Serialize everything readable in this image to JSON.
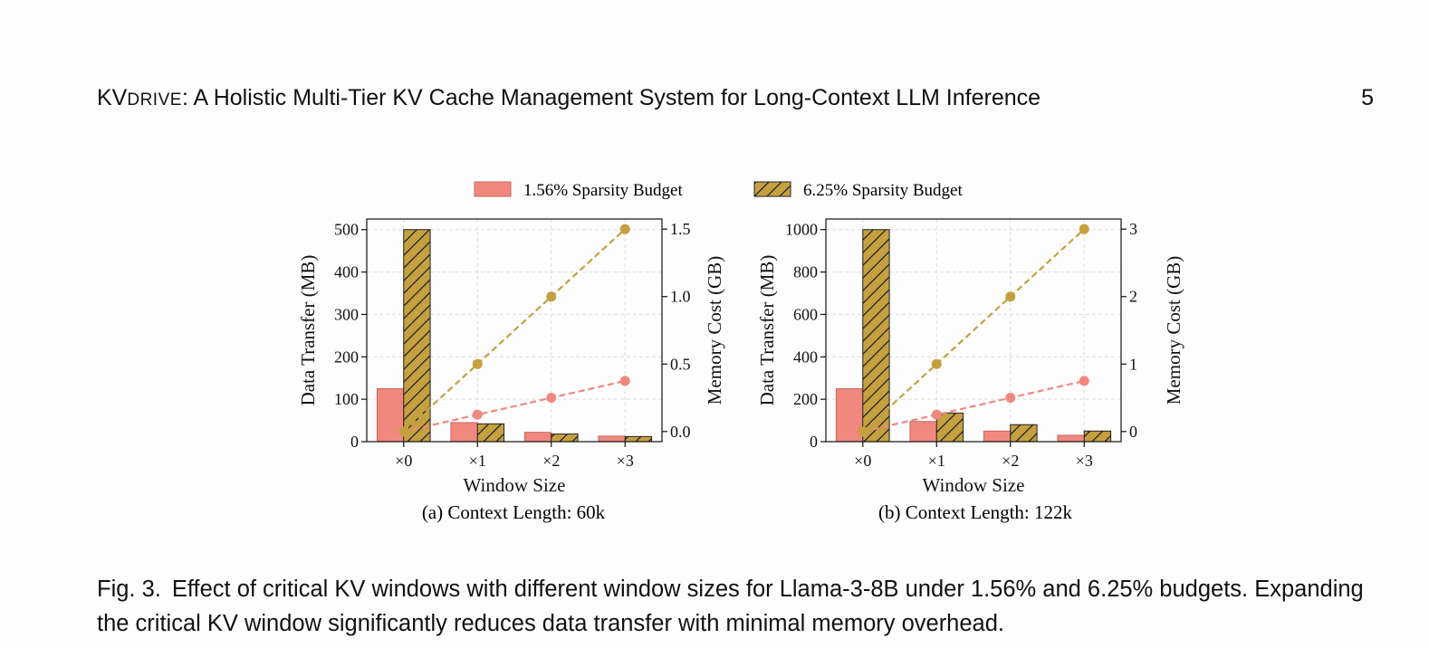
{
  "running_head": {
    "title_prefix": "KV",
    "title_smallcaps": "DRIVE",
    "title_rest": ": A Holistic Multi-Tier KV Cache Management System for Long-Context LLM Inference",
    "page_number": "5"
  },
  "figure": {
    "colors": {
      "budget_1_56": "#f08880",
      "budget_6_25": "#c4a040",
      "budget_1_56_line": "#f08880",
      "budget_6_25_line": "#c4a040"
    },
    "legend": [
      {
        "label": "1.56% Sparsity Budget",
        "style": "solid"
      },
      {
        "label": "6.25% Sparsity Budget",
        "style": "hatched"
      }
    ],
    "subcaption_a": "(a) Context Length: 60k",
    "subcaption_b": "(b) Context Length: 122k"
  },
  "chart_data": [
    {
      "type": "bar",
      "secondary_type": "line",
      "categories": [
        "×0",
        "×1",
        "×2",
        "×3"
      ],
      "xlabel": "Window Size",
      "ylabel": "Data Transfer (MB)",
      "ylim": [
        0,
        525
      ],
      "yticks": [
        0,
        100,
        200,
        300,
        400,
        500
      ],
      "y2label": "Memory Cost (GB)",
      "y2lim": [
        -0.075,
        1.575
      ],
      "y2ticks": [
        "0.0",
        "0.5",
        "1.0",
        "1.5"
      ],
      "y2tick_values": [
        0,
        0.5,
        1.0,
        1.5
      ],
      "series": [
        {
          "name": "1.56% Sparsity Budget",
          "axis": "left",
          "values": [
            125,
            45,
            22,
            13
          ]
        },
        {
          "name": "6.25% Sparsity Budget",
          "axis": "left",
          "values": [
            500,
            42,
            18,
            12
          ]
        },
        {
          "name": "1.56% Sparsity Budget",
          "axis": "right",
          "values": [
            0,
            0.125,
            0.25,
            0.375
          ]
        },
        {
          "name": "6.25% Sparsity Budget",
          "axis": "right",
          "values": [
            0,
            0.5,
            1.0,
            1.5
          ]
        }
      ],
      "grid": true,
      "legend_position": "top-center"
    },
    {
      "type": "bar",
      "secondary_type": "line",
      "categories": [
        "×0",
        "×1",
        "×2",
        "×3"
      ],
      "xlabel": "Window Size",
      "ylabel": "Data Transfer (MB)",
      "ylim": [
        0,
        1050
      ],
      "yticks": [
        0,
        200,
        400,
        600,
        800,
        1000
      ],
      "y2label": "Memory Cost (GB)",
      "y2lim": [
        -0.15,
        3.15
      ],
      "y2ticks": [
        "0",
        "1",
        "2",
        "3"
      ],
      "y2tick_values": [
        0,
        1,
        2,
        3
      ],
      "series": [
        {
          "name": "1.56% Sparsity Budget",
          "axis": "left",
          "values": [
            250,
            95,
            50,
            30
          ]
        },
        {
          "name": "6.25% Sparsity Budget",
          "axis": "left",
          "values": [
            1000,
            135,
            80,
            50
          ]
        },
        {
          "name": "1.56% Sparsity Budget",
          "axis": "right",
          "values": [
            0,
            0.25,
            0.5,
            0.75
          ]
        },
        {
          "name": "6.25% Sparsity Budget",
          "axis": "right",
          "values": [
            0,
            1,
            2,
            3
          ]
        }
      ],
      "grid": true,
      "legend_position": "top-center"
    }
  ],
  "caption": {
    "label": "Fig. 3.",
    "text": "Effect of critical KV windows with different window sizes for Llama-3-8B under 1.56% and 6.25% budgets. Expanding the critical KV window significantly reduces data transfer with minimal memory overhead."
  }
}
